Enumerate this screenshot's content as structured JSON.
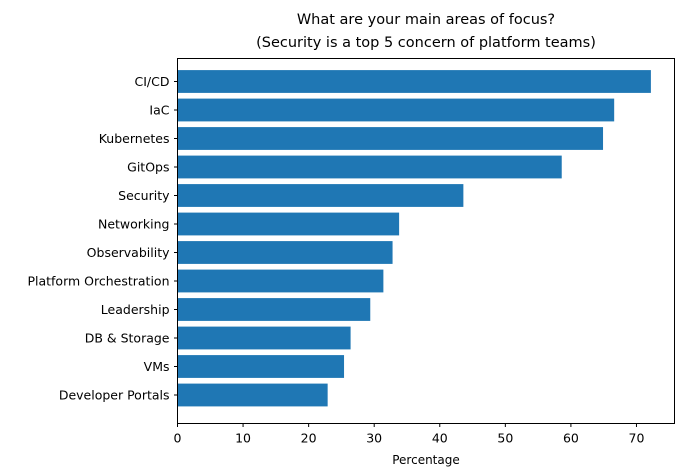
{
  "chart_data": {
    "type": "bar",
    "orientation": "horizontal",
    "title_line1": "What are your main areas of focus?",
    "title_line2": "(Security is a top 5 concern of platform teams)",
    "xlabel": "Percentage",
    "ylabel": "",
    "xlim": [
      0,
      75.8
    ],
    "xticks": [
      0,
      10,
      20,
      30,
      40,
      50,
      60,
      70
    ],
    "categories": [
      "CI/CD",
      "IaC",
      "Kubernetes",
      "GitOps",
      "Security",
      "Networking",
      "Observability",
      "Platform Orchestration",
      "Leadership",
      "DB & Storage",
      "VMs",
      "Developer Portals"
    ],
    "values": [
      72.2,
      66.6,
      64.9,
      58.6,
      43.6,
      33.8,
      32.8,
      31.4,
      29.4,
      26.4,
      25.4,
      22.9
    ],
    "bar_color": "#1f77b4",
    "grid": false
  }
}
